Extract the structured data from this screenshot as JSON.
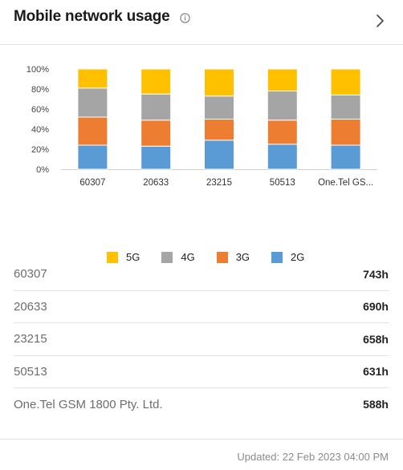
{
  "header": {
    "title": "Mobile network usage",
    "info_icon": "info-icon",
    "chevron_icon": "chevron-right-icon"
  },
  "chart_data": {
    "type": "bar",
    "stacked": true,
    "categories": [
      "60307",
      "20633",
      "23215",
      "50513",
      "One.Tel GS..."
    ],
    "series": [
      {
        "name": "2G",
        "color": "#5b9bd5",
        "values": [
          24,
          23,
          29,
          25,
          24
        ]
      },
      {
        "name": "3G",
        "color": "#ed7d31",
        "values": [
          28,
          26,
          21,
          24,
          26
        ]
      },
      {
        "name": "4G",
        "color": "#a5a5a5",
        "values": [
          29,
          26,
          23,
          29,
          24
        ]
      },
      {
        "name": "5G",
        "color": "#ffc000",
        "values": [
          19,
          25,
          27,
          22,
          26
        ]
      }
    ],
    "ylim": [
      0,
      100
    ],
    "yticks": [
      "0%",
      "20%",
      "40%",
      "60%",
      "80%",
      "100%"
    ],
    "legend_position": "bottom",
    "grid": false
  },
  "legend": [
    {
      "label": "5G",
      "color": "#ffc000"
    },
    {
      "label": "4G",
      "color": "#a5a5a5"
    },
    {
      "label": "3G",
      "color": "#ed7d31"
    },
    {
      "label": "2G",
      "color": "#5b9bd5"
    }
  ],
  "usage_list": [
    {
      "name": "60307",
      "value": "743h"
    },
    {
      "name": "20633",
      "value": "690h"
    },
    {
      "name": "23215",
      "value": "658h"
    },
    {
      "name": "50513",
      "value": "631h"
    },
    {
      "name": "One.Tel GSM 1800 Pty. Ltd.",
      "value": "588h"
    }
  ],
  "footer": {
    "updated": "Updated: 22 Feb 2023 04:00 PM"
  }
}
